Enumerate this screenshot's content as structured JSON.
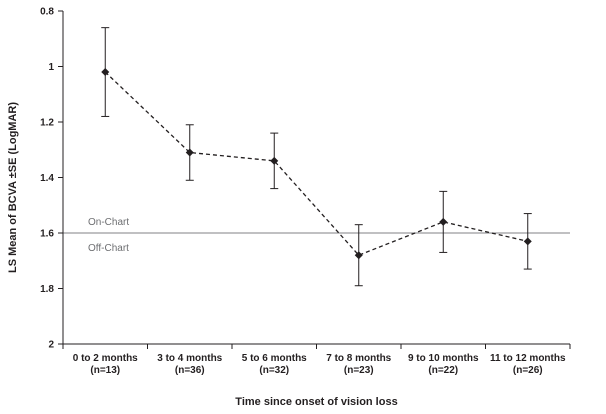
{
  "chart_data": {
    "type": "line",
    "title": "",
    "xlabel": "Time since onset of vision loss",
    "ylabel": "LS Mean of BCVA ±SE (LogMAR)",
    "ylim": [
      0.8,
      2.0
    ],
    "y_inverted": true,
    "y_ticks": [
      "0.8",
      "1",
      "1.2",
      "1.4",
      "1.6",
      "1.8",
      "2"
    ],
    "categories": [
      {
        "line1": "0 to 2 months",
        "line2": "(n=13)"
      },
      {
        "line1": "3 to 4 months",
        "line2": "(n=36)"
      },
      {
        "line1": "5 to 6 months",
        "line2": "(n=32)"
      },
      {
        "line1": "7 to 8 months",
        "line2": "(n=23)"
      },
      {
        "line1": "9 to 10 months",
        "line2": "(n=22)"
      },
      {
        "line1": "11 to 12 months",
        "line2": "(n=26)"
      }
    ],
    "series": [
      {
        "values": [
          1.02,
          1.31,
          1.34,
          1.68,
          1.56,
          1.63
        ],
        "se": [
          0.16,
          0.1,
          0.1,
          0.11,
          0.11,
          0.1
        ],
        "line_style": "dashed",
        "marker": "diamond",
        "color": "#231f20"
      }
    ],
    "reference_line": {
      "value": 1.6,
      "label_above": "On-Chart",
      "label_below": "Off-Chart",
      "color": "#808285"
    },
    "grid": false,
    "legend": "none"
  }
}
